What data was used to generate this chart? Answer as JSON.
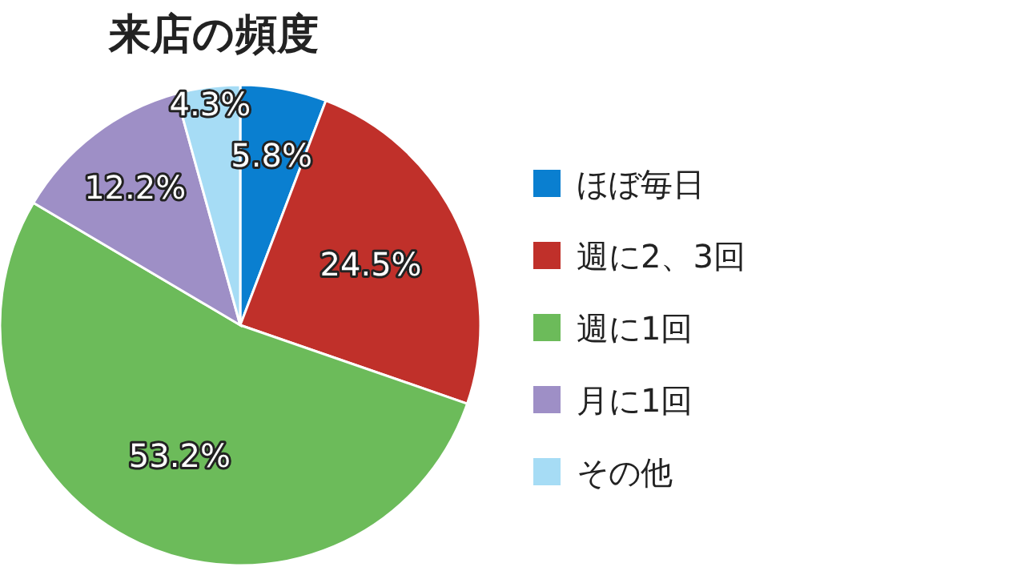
{
  "chart_data": {
    "type": "pie",
    "title": "来店の頻度",
    "categories": [
      "ほぼ毎日",
      "週に2、3回",
      "週に1回",
      "月に1回",
      "その他"
    ],
    "values": [
      5.8,
      24.5,
      53.2,
      12.2,
      4.3
    ],
    "colors": [
      "#0a7fd0",
      "#c0302a",
      "#6cbb5a",
      "#9e8fc6",
      "#a6dcf5"
    ],
    "value_labels": [
      "5.8%",
      "24.5%",
      "53.2%",
      "12.2%",
      "4.3%"
    ],
    "legend": "right"
  }
}
